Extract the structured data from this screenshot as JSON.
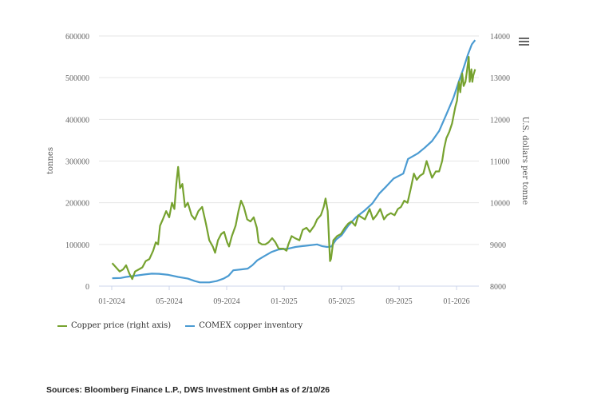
{
  "menu_icon": "hamburger-menu-icon",
  "chart_data": {
    "type": "line",
    "title": "",
    "xlabel": "",
    "ylabel": "tonnes",
    "y2label": "U.S. dollars per tonne",
    "ylim": [
      0,
      600000
    ],
    "y2lim": [
      8000,
      14000
    ],
    "yticks": [
      "0",
      "100000",
      "200000",
      "300000",
      "400000",
      "500000",
      "600000"
    ],
    "y2ticks": [
      "8000",
      "9000",
      "10000",
      "11000",
      "12000",
      "13000",
      "14000"
    ],
    "xticks": [
      "01-2024",
      "05-2024",
      "09-2024",
      "01-2025",
      "05-2025",
      "09-2025",
      "01-2026"
    ],
    "grid": true,
    "legend_position": "bottom-left",
    "series": [
      {
        "name": "Copper price (right axis)",
        "axis": "right",
        "color": "#76a22f",
        "points": [
          [
            "2024-01-02",
            8550
          ],
          [
            "2024-01-10",
            8450
          ],
          [
            "2024-01-18",
            8350
          ],
          [
            "2024-01-25",
            8400
          ],
          [
            "2024-02-01",
            8500
          ],
          [
            "2024-02-08",
            8300
          ],
          [
            "2024-02-14",
            8170
          ],
          [
            "2024-02-20",
            8350
          ],
          [
            "2024-02-28",
            8400
          ],
          [
            "2024-03-05",
            8450
          ],
          [
            "2024-03-12",
            8600
          ],
          [
            "2024-03-20",
            8650
          ],
          [
            "2024-03-28",
            8850
          ],
          [
            "2024-04-03",
            9050
          ],
          [
            "2024-04-08",
            9000
          ],
          [
            "2024-04-12",
            9450
          ],
          [
            "2024-04-18",
            9600
          ],
          [
            "2024-04-25",
            9800
          ],
          [
            "2024-05-01",
            9650
          ],
          [
            "2024-05-07",
            10000
          ],
          [
            "2024-05-12",
            9850
          ],
          [
            "2024-05-16",
            10450
          ],
          [
            "2024-05-20",
            10860
          ],
          [
            "2024-05-24",
            10350
          ],
          [
            "2024-05-29",
            10450
          ],
          [
            "2024-06-04",
            9900
          ],
          [
            "2024-06-10",
            10000
          ],
          [
            "2024-06-18",
            9700
          ],
          [
            "2024-06-25",
            9600
          ],
          [
            "2024-07-02",
            9800
          ],
          [
            "2024-07-10",
            9900
          ],
          [
            "2024-07-18",
            9500
          ],
          [
            "2024-07-25",
            9100
          ],
          [
            "2024-08-02",
            8950
          ],
          [
            "2024-08-07",
            8800
          ],
          [
            "2024-08-13",
            9100
          ],
          [
            "2024-08-20",
            9250
          ],
          [
            "2024-08-26",
            9300
          ],
          [
            "2024-09-02",
            9050
          ],
          [
            "2024-09-06",
            8950
          ],
          [
            "2024-09-12",
            9200
          ],
          [
            "2024-09-20",
            9450
          ],
          [
            "2024-09-26",
            9800
          ],
          [
            "2024-10-01",
            10050
          ],
          [
            "2024-10-07",
            9900
          ],
          [
            "2024-10-14",
            9600
          ],
          [
            "2024-10-21",
            9550
          ],
          [
            "2024-10-28",
            9650
          ],
          [
            "2024-11-04",
            9400
          ],
          [
            "2024-11-08",
            9050
          ],
          [
            "2024-11-15",
            9000
          ],
          [
            "2024-11-22",
            9000
          ],
          [
            "2024-11-29",
            9050
          ],
          [
            "2024-12-06",
            9150
          ],
          [
            "2024-12-13",
            9050
          ],
          [
            "2024-12-20",
            8900
          ],
          [
            "2024-12-30",
            8900
          ],
          [
            "2025-01-06",
            8850
          ],
          [
            "2025-01-10",
            9000
          ],
          [
            "2025-01-17",
            9200
          ],
          [
            "2025-01-24",
            9150
          ],
          [
            "2025-02-03",
            9100
          ],
          [
            "2025-02-10",
            9350
          ],
          [
            "2025-02-18",
            9400
          ],
          [
            "2025-02-25",
            9300
          ],
          [
            "2025-03-04",
            9450
          ],
          [
            "2025-03-10",
            9600
          ],
          [
            "2025-03-18",
            9700
          ],
          [
            "2025-03-24",
            9900
          ],
          [
            "2025-03-28",
            10100
          ],
          [
            "2025-04-02",
            9800
          ],
          [
            "2025-04-07",
            8600
          ],
          [
            "2025-04-09",
            8650
          ],
          [
            "2025-04-14",
            9100
          ],
          [
            "2025-04-22",
            9200
          ],
          [
            "2025-04-30",
            9250
          ],
          [
            "2025-05-08",
            9400
          ],
          [
            "2025-05-15",
            9500
          ],
          [
            "2025-05-22",
            9550
          ],
          [
            "2025-05-30",
            9450
          ],
          [
            "2025-06-06",
            9700
          ],
          [
            "2025-06-13",
            9650
          ],
          [
            "2025-06-20",
            9600
          ],
          [
            "2025-06-30",
            9850
          ],
          [
            "2025-07-07",
            9600
          ],
          [
            "2025-07-14",
            9700
          ],
          [
            "2025-07-22",
            9850
          ],
          [
            "2025-07-30",
            9600
          ],
          [
            "2025-08-06",
            9700
          ],
          [
            "2025-08-14",
            9750
          ],
          [
            "2025-08-22",
            9700
          ],
          [
            "2025-08-29",
            9850
          ],
          [
            "2025-09-05",
            9900
          ],
          [
            "2025-09-12",
            10050
          ],
          [
            "2025-09-19",
            10000
          ],
          [
            "2025-09-26",
            10350
          ],
          [
            "2025-10-02",
            10700
          ],
          [
            "2025-10-08",
            10550
          ],
          [
            "2025-10-15",
            10650
          ],
          [
            "2025-10-22",
            10700
          ],
          [
            "2025-10-29",
            11000
          ],
          [
            "2025-11-04",
            10800
          ],
          [
            "2025-11-10",
            10600
          ],
          [
            "2025-11-18",
            10750
          ],
          [
            "2025-11-25",
            10750
          ],
          [
            "2025-12-01",
            11000
          ],
          [
            "2025-12-05",
            11300
          ],
          [
            "2025-12-10",
            11550
          ],
          [
            "2025-12-16",
            11700
          ],
          [
            "2025-12-22",
            11900
          ],
          [
            "2025-12-29",
            12300
          ],
          [
            "2026-01-02",
            12450
          ],
          [
            "2026-01-06",
            12900
          ],
          [
            "2026-01-09",
            12650
          ],
          [
            "2026-01-13",
            13100
          ],
          [
            "2026-01-16",
            12800
          ],
          [
            "2026-01-20",
            12900
          ],
          [
            "2026-01-23",
            13150
          ],
          [
            "2026-01-27",
            13500
          ],
          [
            "2026-01-29",
            12900
          ],
          [
            "2026-02-02",
            13200
          ],
          [
            "2026-02-04",
            12900
          ],
          [
            "2026-02-06",
            13050
          ],
          [
            "2026-02-10",
            13200
          ]
        ]
      },
      {
        "name": "COMEX copper inventory",
        "axis": "left",
        "color": "#4b9bd2",
        "points": [
          [
            "2024-01-02",
            19000
          ],
          [
            "2024-01-20",
            19500
          ],
          [
            "2024-02-01",
            22000
          ],
          [
            "2024-02-20",
            25000
          ],
          [
            "2024-03-10",
            28000
          ],
          [
            "2024-03-25",
            30000
          ],
          [
            "2024-04-10",
            29500
          ],
          [
            "2024-04-30",
            27000
          ],
          [
            "2024-05-20",
            22000
          ],
          [
            "2024-06-10",
            18000
          ],
          [
            "2024-06-25",
            12000
          ],
          [
            "2024-07-05",
            9000
          ],
          [
            "2024-07-25",
            9000
          ],
          [
            "2024-08-10",
            12000
          ],
          [
            "2024-08-25",
            18000
          ],
          [
            "2024-09-05",
            25000
          ],
          [
            "2024-09-15",
            38000
          ],
          [
            "2024-10-01",
            40000
          ],
          [
            "2024-10-15",
            42000
          ],
          [
            "2024-10-25",
            50000
          ],
          [
            "2024-11-05",
            62000
          ],
          [
            "2024-11-20",
            72000
          ],
          [
            "2024-12-05",
            82000
          ],
          [
            "2024-12-20",
            88000
          ],
          [
            "2025-01-10",
            90000
          ],
          [
            "2025-01-25",
            94000
          ],
          [
            "2025-02-10",
            96000
          ],
          [
            "2025-02-25",
            98000
          ],
          [
            "2025-03-10",
            100000
          ],
          [
            "2025-03-20",
            96000
          ],
          [
            "2025-04-01",
            94000
          ],
          [
            "2025-04-10",
            95000
          ],
          [
            "2025-04-20",
            112000
          ],
          [
            "2025-05-01",
            122000
          ],
          [
            "2025-05-15",
            145000
          ],
          [
            "2025-06-01",
            165000
          ],
          [
            "2025-06-20",
            182000
          ],
          [
            "2025-07-05",
            198000
          ],
          [
            "2025-07-20",
            222000
          ],
          [
            "2025-08-05",
            240000
          ],
          [
            "2025-08-20",
            258000
          ],
          [
            "2025-09-10",
            270000
          ],
          [
            "2025-09-20",
            305000
          ],
          [
            "2025-10-10",
            318000
          ],
          [
            "2025-10-25",
            332000
          ],
          [
            "2025-11-10",
            348000
          ],
          [
            "2025-11-25",
            372000
          ],
          [
            "2025-12-10",
            412000
          ],
          [
            "2025-12-25",
            452000
          ],
          [
            "2026-01-05",
            488000
          ],
          [
            "2026-01-15",
            520000
          ],
          [
            "2026-01-25",
            555000
          ],
          [
            "2026-02-03",
            580000
          ],
          [
            "2026-02-10",
            590000
          ]
        ]
      }
    ]
  },
  "legend": {
    "items": [
      "Copper price (right axis)",
      "COMEX copper inventory"
    ]
  },
  "source": "Sources: Bloomberg Finance L.P., DWS Investment GmbH as of 2/10/26"
}
